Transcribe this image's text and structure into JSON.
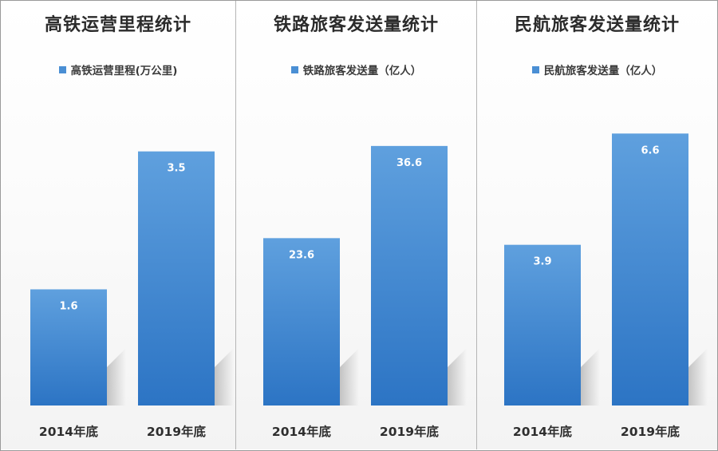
{
  "colors": {
    "bar_top": "#5fa0de",
    "bar_bottom": "#2c74c4",
    "legend": "#4a8fd4"
  },
  "chart_data": [
    {
      "type": "bar",
      "title": "高铁运营里程统计",
      "legend": "高铁运营里程(万公里)",
      "categories": [
        "2014年底",
        "2019年底"
      ],
      "series": [
        {
          "name": "高铁运营里程(万公里)",
          "values": [
            1.6,
            3.5
          ]
        }
      ],
      "value_labels": [
        "1.6",
        "3.5"
      ],
      "ylim": [
        0,
        4.2
      ]
    },
    {
      "type": "bar",
      "title": "铁路旅客发送量统计",
      "legend": "铁路旅客发送量（亿人）",
      "categories": [
        "2014年底",
        "2019年底"
      ],
      "series": [
        {
          "name": "铁路旅客发送量（亿人）",
          "values": [
            23.6,
            36.6
          ]
        }
      ],
      "value_labels": [
        "23.6",
        "36.6"
      ],
      "ylim": [
        0,
        43
      ]
    },
    {
      "type": "bar",
      "title": "民航旅客发送量统计",
      "legend": "民航旅客发送量（亿人）",
      "categories": [
        "2014年底",
        "2019年底"
      ],
      "series": [
        {
          "name": "民航旅客发送量（亿人）",
          "values": [
            3.9,
            6.6
          ]
        }
      ],
      "value_labels": [
        "3.9",
        "6.6"
      ],
      "ylim": [
        0,
        7.4
      ]
    }
  ]
}
